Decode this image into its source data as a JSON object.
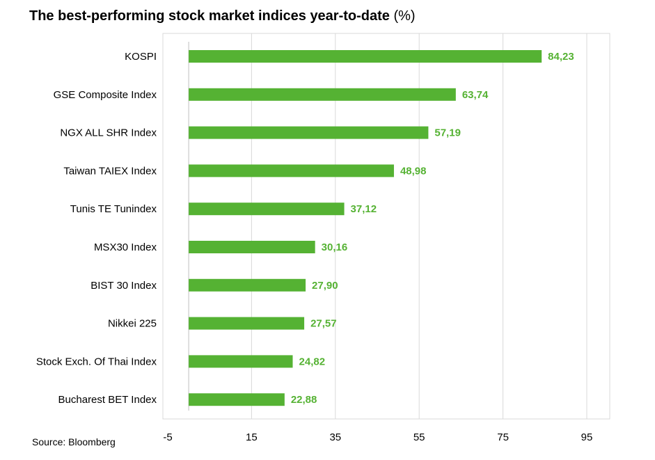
{
  "title": "The best-performing stock market indices year-to-date",
  "title_unit": "(%)",
  "source": "Source: Bloomberg",
  "colors": {
    "bar": "#55b233",
    "value_label": "#55b233",
    "grid": "#d9d9d9",
    "axis": "#000000"
  },
  "chart_data": {
    "type": "bar",
    "orientation": "horizontal",
    "title": "The best-performing stock market indices year-to-date (%)",
    "categories": [
      "KOSPI",
      "GSE Composite Index",
      "NGX ALL SHR Index",
      "Taiwan TAIEX Index",
      "Tunis TE Tunindex",
      "MSX30 Index",
      "BIST 30 Index",
      "Nikkei 225",
      "Stock Exch. Of Thai Index",
      "Bucharest BET Index"
    ],
    "values": [
      84.23,
      63.74,
      57.19,
      48.98,
      37.12,
      30.16,
      27.9,
      27.57,
      24.82,
      22.88
    ],
    "value_labels": [
      "84,23",
      "63,74",
      "57,19",
      "48,98",
      "37,12",
      "30,16",
      "27,90",
      "27,57",
      "24,82",
      "22,88"
    ],
    "xlim": [
      -5,
      100
    ],
    "xticks": [
      -5,
      15,
      35,
      55,
      75,
      95
    ],
    "xtick_labels": [
      "-5",
      "15",
      "35",
      "55",
      "75",
      "95"
    ],
    "grid": "vertical",
    "legend": "none"
  }
}
